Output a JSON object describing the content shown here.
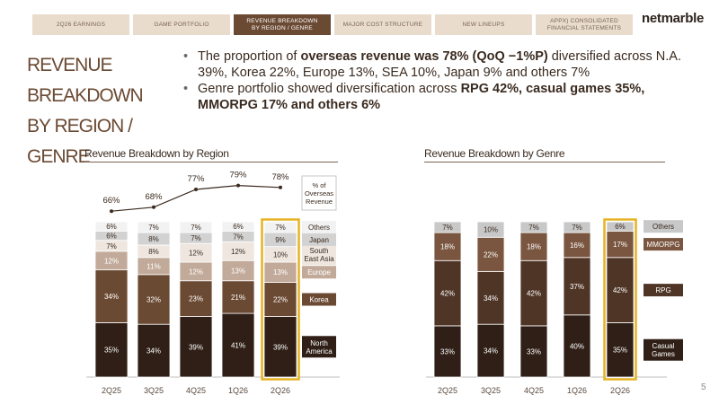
{
  "nav": {
    "tabs": [
      {
        "label": "2Q26  EARNINGS",
        "active": false
      },
      {
        "label": "GAME PORTFOLIO",
        "active": false
      },
      {
        "label": "REVENUE BREAKDOWN\nBY REGION / GENRE",
        "active": true
      },
      {
        "label": "MAJOR COST STRUCTURE",
        "active": false
      },
      {
        "label": "NEW LINEUPS",
        "active": false
      },
      {
        "label": "APPX) CONSOLIDATED\nFINANCIAL STATEMENTS",
        "active": false
      }
    ]
  },
  "logo": "netmarble",
  "title": {
    "line1": "REVENUE",
    "line2": "BREAKDOWN",
    "line3": "BY REGION / GENRE"
  },
  "bullets": [
    {
      "pre": "The proportion of ",
      "bold": "overseas revenue was 78% (QoQ −1%P)",
      "post": " diversified across N.A. 39%, Korea 22%, Europe 13%, SEA 10%, Japan 9% and others 7%"
    },
    {
      "pre": "Genre portfolio showed diversification across ",
      "bold": "RPG 42%, casual games 35%, MMORPG 17% and others 6%",
      "post": ""
    }
  ],
  "page_number": "5",
  "chart_data": [
    {
      "type": "bar",
      "stacked": true,
      "title": "Revenue Breakdown by Region",
      "categories": [
        "2Q25",
        "3Q25",
        "4Q25",
        "1Q26",
        "2Q26"
      ],
      "highlight_category": "2Q26",
      "series": [
        {
          "name": "North\nAmerica",
          "values": [
            35,
            34,
            39,
            41,
            39
          ],
          "color": "#2f1f16",
          "label_color": "#ffffff"
        },
        {
          "name": "Korea",
          "values": [
            34,
            32,
            23,
            21,
            22
          ],
          "color": "#6b4a33",
          "label_color": "#ffffff"
        },
        {
          "name": "Europe",
          "values": [
            12,
            11,
            12,
            13,
            13
          ],
          "color": "#c2aa9a",
          "label_color": "#ffffff"
        },
        {
          "name": "South\nEast Asia",
          "values": [
            7,
            8,
            12,
            12,
            10
          ],
          "color": "#eee6df",
          "label_color": "#3a2a1f"
        },
        {
          "name": "Japan",
          "values": [
            6,
            8,
            7,
            7,
            9
          ],
          "color": "#d2d2d2",
          "label_color": "#3a2a1f"
        },
        {
          "name": "Others",
          "values": [
            6,
            7,
            7,
            6,
            7
          ],
          "color": "#f2f2f2",
          "label_color": "#3a2a1f"
        }
      ],
      "line": {
        "name": "% of\nOverseas\nRevenue",
        "values": [
          66,
          68,
          77,
          79,
          78
        ],
        "labels": [
          "66%",
          "68%",
          "77%",
          "79%",
          "78%"
        ]
      }
    },
    {
      "type": "bar",
      "stacked": true,
      "title": "Revenue Breakdown by Genre",
      "categories": [
        "2Q25",
        "3Q25",
        "4Q25",
        "1Q26",
        "2Q26"
      ],
      "highlight_category": "2Q26",
      "series": [
        {
          "name": "Casual\nGames",
          "values": [
            33,
            34,
            33,
            40,
            35
          ],
          "color": "#2f1f16",
          "label_color": "#ffffff"
        },
        {
          "name": "RPG",
          "values": [
            42,
            34,
            42,
            37,
            42
          ],
          "color": "#4f3526",
          "label_color": "#ffffff"
        },
        {
          "name": "MMORPG",
          "values": [
            18,
            22,
            18,
            16,
            17
          ],
          "color": "#7a5640",
          "label_color": "#ffffff"
        },
        {
          "name": "Others",
          "values": [
            7,
            10,
            7,
            7,
            6
          ],
          "color": "#c8c8c8",
          "label_color": "#3a2a1f"
        }
      ]
    }
  ]
}
